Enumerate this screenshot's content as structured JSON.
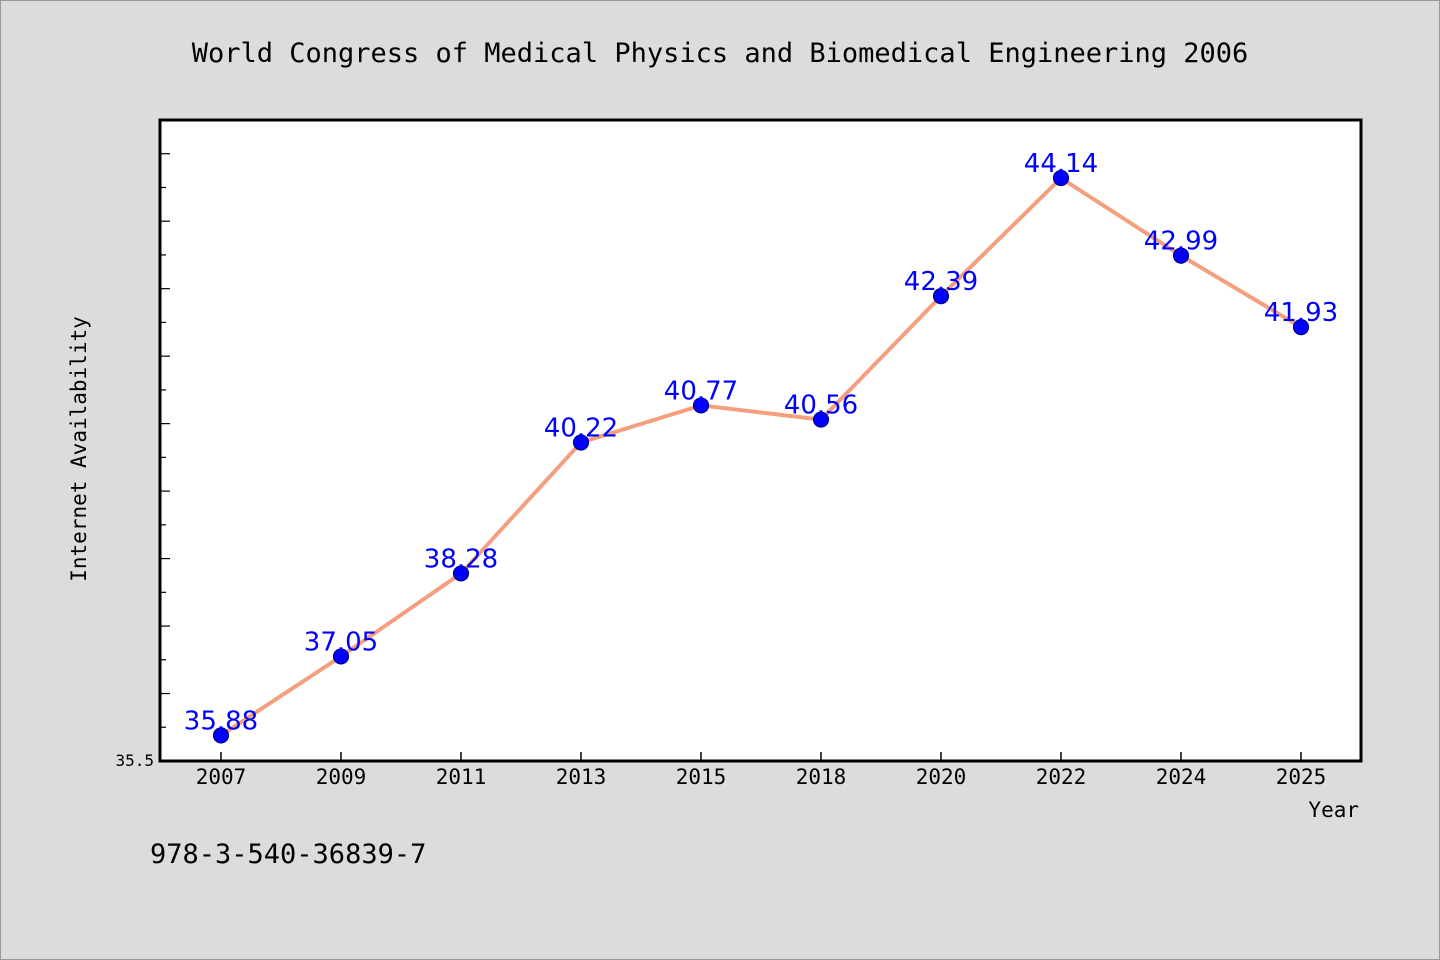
{
  "chart_data": {
    "type": "line",
    "title": "World Congress of Medical Physics and Biomedical Engineering 2006",
    "xlabel": "Year",
    "ylabel": "Internet Availability",
    "categories": [
      "2007",
      "2009",
      "2011",
      "2013",
      "2015",
      "2018",
      "2020",
      "2022",
      "2024",
      "2025"
    ],
    "series": [
      {
        "values": [
          35.88,
          37.05,
          38.28,
          40.22,
          40.77,
          40.56,
          42.39,
          44.14,
          42.99,
          41.93
        ],
        "labels": [
          "35.88",
          "37.05",
          "38.28",
          "40.22",
          "40.77",
          "40.56",
          "42.39",
          "44.14",
          "42.99",
          "41.93"
        ],
        "line_color": "#f4a07e",
        "marker_color": "#0000ff"
      }
    ],
    "ylim": [
      35.5,
      45.0
    ],
    "ytick_labels": [
      "35.5"
    ],
    "label_color": "#0000ff",
    "grid": false,
    "legend": "none"
  },
  "footer": {
    "isbn": "978-3-540-36839-7"
  }
}
